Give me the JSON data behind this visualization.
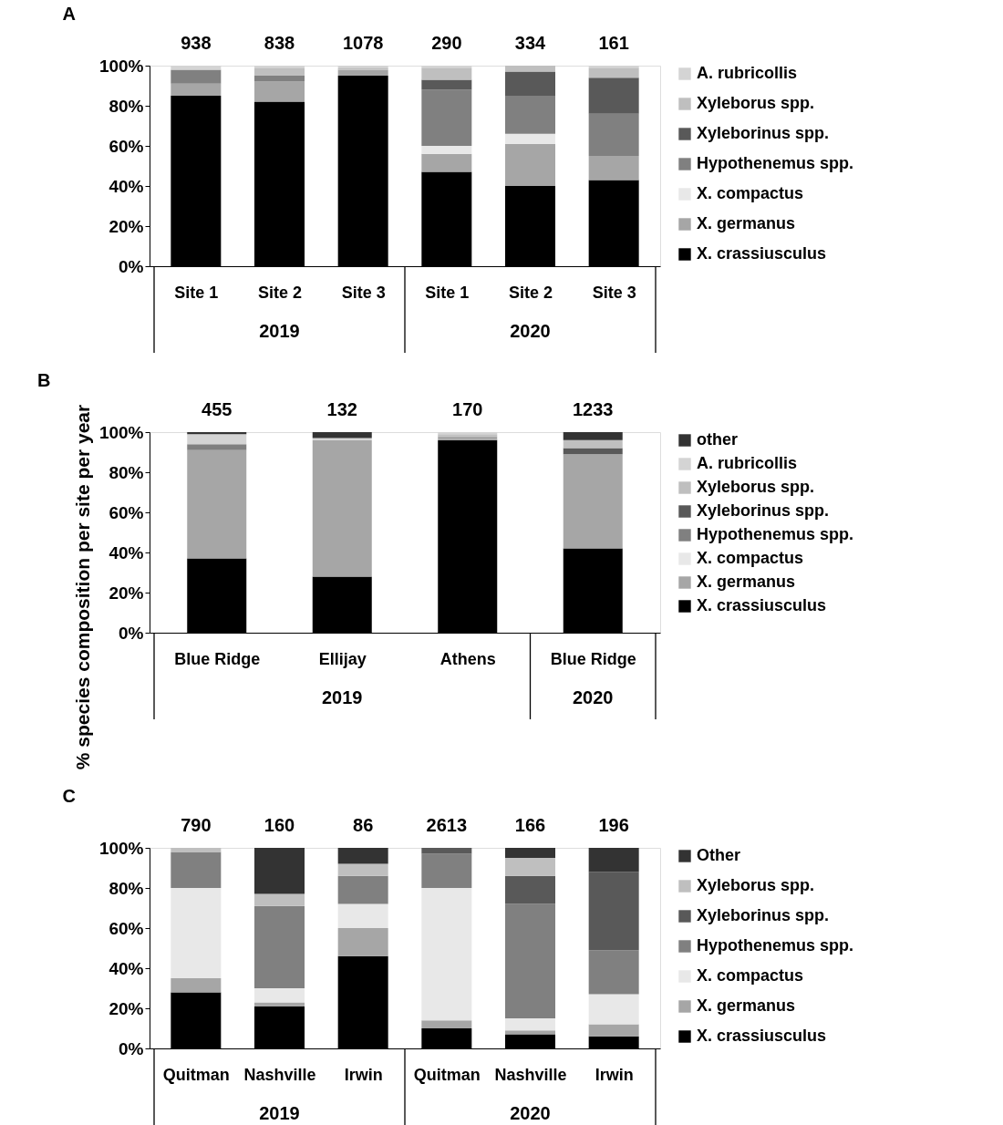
{
  "chart_data": [
    {
      "type": "bar",
      "stacked": true,
      "title": "A",
      "legend": "right",
      "categories": [
        "Site 1",
        "Site 2",
        "Site 3",
        "Site 1",
        "Site 2",
        "Site 3"
      ],
      "annotations": [
        "938",
        "838",
        "1078",
        "290",
        "334",
        "161",
        "2019",
        "2020"
      ],
      "ylim": [
        0,
        100
      ],
      "yticks": [
        {
          "value": 0,
          "label": "0%"
        },
        {
          "value": 20,
          "label": "20%"
        },
        {
          "value": 40,
          "label": "40%"
        },
        {
          "value": 60,
          "label": "60%"
        },
        {
          "value": 80,
          "label": "80%"
        },
        {
          "value": 100,
          "label": "100%"
        }
      ],
      "series": [
        {
          "name": "X. crassiusculus",
          "color": "#000000",
          "values": [
            85,
            82,
            95,
            47,
            40,
            43
          ]
        },
        {
          "name": "X. germanus",
          "color": "#a6a6a6",
          "values": [
            6,
            10,
            3,
            9,
            21,
            12
          ]
        },
        {
          "name": "X. compactus",
          "color": "#e8e8e8",
          "values": [
            0,
            0,
            0,
            4,
            5,
            0
          ]
        },
        {
          "name": "Hypothenemus spp.",
          "color": "#808080",
          "values": [
            7,
            3,
            0,
            28,
            19,
            21
          ]
        },
        {
          "name": "Xyleborinus spp.",
          "color": "#595959",
          "values": [
            0,
            0,
            0,
            5,
            12,
            18
          ]
        },
        {
          "name": "Xyleborus spp.",
          "color": "#bfbfbf",
          "values": [
            0,
            4,
            1,
            6,
            3,
            5
          ]
        },
        {
          "name": "A. rubricollis",
          "color": "#d4d4d4",
          "values": [
            2,
            1,
            1,
            1,
            0,
            1
          ]
        }
      ]
    },
    {
      "type": "bar",
      "stacked": true,
      "title": "B",
      "legend": "right",
      "ylabel": "% species composition per site per year",
      "categories": [
        "Blue Ridge",
        "Ellijay",
        "Athens",
        "Blue Ridge"
      ],
      "annotations": [
        "455",
        "132",
        "170",
        "1233",
        "2019",
        "2020"
      ],
      "ylim": [
        0,
        100
      ],
      "yticks": [
        {
          "value": 0,
          "label": "0%"
        },
        {
          "value": 20,
          "label": "20%"
        },
        {
          "value": 40,
          "label": "40%"
        },
        {
          "value": 60,
          "label": "60%"
        },
        {
          "value": 80,
          "label": "80%"
        },
        {
          "value": 100,
          "label": "100%"
        }
      ],
      "series": [
        {
          "name": "X. crassiusculus",
          "color": "#000000",
          "values": [
            37,
            28,
            96,
            42
          ]
        },
        {
          "name": "X. germanus",
          "color": "#a6a6a6",
          "values": [
            54,
            68,
            2,
            47
          ]
        },
        {
          "name": "X. compactus",
          "color": "#e8e8e8",
          "values": [
            0,
            0,
            0,
            0
          ]
        },
        {
          "name": "Hypothenemus spp.",
          "color": "#808080",
          "values": [
            3,
            0,
            0,
            0
          ]
        },
        {
          "name": "Xyleborinus spp.",
          "color": "#595959",
          "values": [
            0,
            0,
            0,
            3
          ]
        },
        {
          "name": "Xyleborus spp.",
          "color": "#bfbfbf",
          "values": [
            0,
            0,
            1,
            4
          ]
        },
        {
          "name": "A. rubricollis",
          "color": "#d4d4d4",
          "values": [
            5,
            1,
            1,
            0
          ]
        },
        {
          "name": "other",
          "color": "#333333",
          "values": [
            1,
            3,
            0,
            4
          ]
        }
      ]
    },
    {
      "type": "bar",
      "stacked": true,
      "title": "C",
      "legend": "right",
      "categories": [
        "Quitman",
        "Nashville",
        "Irwin",
        "Quitman",
        "Nashville",
        "Irwin"
      ],
      "annotations": [
        "790",
        "160",
        "86",
        "2613",
        "166",
        "196",
        "2019",
        "2020"
      ],
      "ylim": [
        0,
        100
      ],
      "yticks": [
        {
          "value": 0,
          "label": "0%"
        },
        {
          "value": 20,
          "label": "20%"
        },
        {
          "value": 40,
          "label": "40%"
        },
        {
          "value": 60,
          "label": "60%"
        },
        {
          "value": 80,
          "label": "80%"
        },
        {
          "value": 100,
          "label": "100%"
        }
      ],
      "series": [
        {
          "name": "X. crassiusculus",
          "color": "#000000",
          "values": [
            28,
            21,
            46,
            10,
            7,
            6
          ]
        },
        {
          "name": "X. germanus",
          "color": "#a6a6a6",
          "values": [
            7,
            2,
            14,
            4,
            2,
            6
          ]
        },
        {
          "name": "X. compactus",
          "color": "#e8e8e8",
          "values": [
            45,
            7,
            12,
            66,
            6,
            15
          ]
        },
        {
          "name": "Hypothenemus spp.",
          "color": "#808080",
          "values": [
            18,
            41,
            14,
            17,
            57,
            22
          ]
        },
        {
          "name": "Xyleborinus spp.",
          "color": "#595959",
          "values": [
            0,
            0,
            0,
            3,
            14,
            39
          ]
        },
        {
          "name": "Xyleborus spp.",
          "color": "#bfbfbf",
          "values": [
            2,
            6,
            6,
            0,
            9,
            0
          ]
        },
        {
          "name": "Other",
          "color": "#333333",
          "values": [
            0,
            23,
            8,
            0,
            5,
            12
          ]
        }
      ]
    }
  ]
}
